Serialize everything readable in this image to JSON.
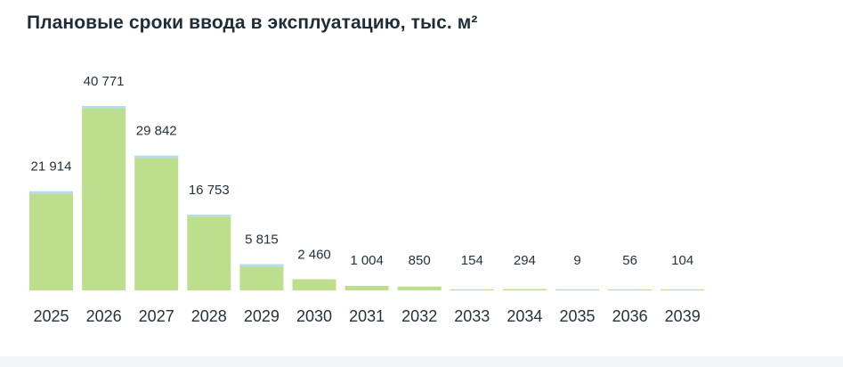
{
  "title": "Плановые сроки ввода в эксплуатацию, тыс. м²",
  "colors": {
    "bar": "#bddf8d",
    "bar_top": "#b8dcee",
    "label": "#26323c"
  },
  "chart_data": {
    "type": "bar",
    "title": "Плановые сроки ввода в эксплуатацию, тыс. м²",
    "categories": [
      "2025",
      "2026",
      "2027",
      "2028",
      "2029",
      "2030",
      "2031",
      "2032",
      "2033",
      "2034",
      "2035",
      "2036",
      "2039"
    ],
    "values": [
      21914,
      40771,
      29842,
      16753,
      5815,
      2460,
      1004,
      850,
      154,
      294,
      9,
      56,
      104
    ],
    "value_labels": [
      "21 914",
      "40 771",
      "29 842",
      "16 753",
      "5 815",
      "2 460",
      "1 004",
      "850",
      "154",
      "294",
      "9",
      "56",
      "104"
    ],
    "xlabel": "",
    "ylabel": "",
    "ylim": [
      0,
      40771
    ],
    "grid": false,
    "legend": "none"
  }
}
